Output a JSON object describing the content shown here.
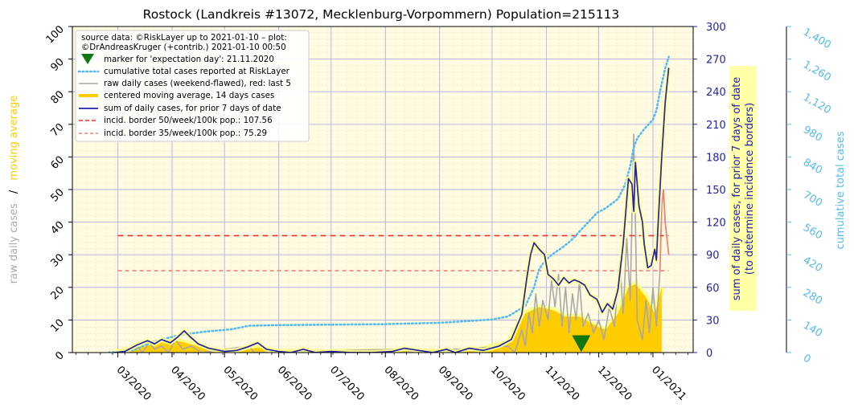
{
  "chart_data": {
    "type": "line",
    "title": "Rostock (Landkreis #13072, Mecklenburg-Vorpommern) Population=215113",
    "x_tick_labels": [
      "03/2020",
      "04/2020",
      "05/2020",
      "06/2020",
      "07/2020",
      "08/2020",
      "09/2020",
      "10/2020",
      "11/2020",
      "12/2020",
      "01/2021"
    ],
    "x_range": [
      "2020-02-04",
      "2021-01-24"
    ],
    "axes": {
      "left": {
        "label_part1": "raw daily cases",
        "label_sep": "/",
        "label_part2": "moving average",
        "range": [
          0,
          100
        ],
        "ticks": [
          "0",
          "10",
          "20",
          "30",
          "40",
          "50",
          "60",
          "70",
          "80",
          "90",
          "100"
        ]
      },
      "right1": {
        "label_line1": "sum of daily cases, for prior 7 days of date",
        "label_line2": "(to determine incidence borders)",
        "range": [
          0,
          300
        ],
        "ticks": [
          "0",
          "30",
          "60",
          "90",
          "120",
          "150",
          "180",
          "210",
          "240",
          "270",
          "300"
        ]
      },
      "right2": {
        "label": "cumulative total cases",
        "range": [
          0,
          1400
        ],
        "ticks": [
          "0",
          "140",
          "280",
          "420",
          "560",
          "700",
          "840",
          "980",
          "1,120",
          "1,260",
          "1,400"
        ]
      }
    },
    "legend": {
      "position": "top-left",
      "source_line1": "source data: ©RiskLayer up to 2021-01-10 – plot:",
      "source_line2": "©DrAndreasKruger (+contrib.) 2021-01-10 00:50",
      "entries": [
        "marker for 'expectation day': 21.11.2020",
        "cumulative total cases reported at RiskLayer",
        "raw daily cases (weekend-flawed), red: last 5",
        "centered moving average, 14 days cases",
        "sum of daily cases, for prior 7 days of date",
        "incid. border 50/week/100k pop.: 107.56",
        "incid. border 35/week/100k pop.: 75.29"
      ]
    },
    "expectation_day": {
      "date": "2020-11-21",
      "y_left": 2.5
    },
    "incidence_borders": [
      {
        "name": "50/week/100k",
        "value": 107.56,
        "from": "2020-03-01",
        "to": "2021-01-10",
        "color": "#ee3333"
      },
      {
        "name": "35/week/100k",
        "value": 75.29,
        "from": "2020-03-01",
        "to": "2021-01-10",
        "color": "#f08080"
      }
    ],
    "series": {
      "cumulative": {
        "axis": "right2",
        "points": [
          [
            "2020-02-25",
            0
          ],
          [
            "2020-03-10",
            10
          ],
          [
            "2020-03-20",
            45
          ],
          [
            "2020-04-05",
            75
          ],
          [
            "2020-04-20",
            90
          ],
          [
            "2020-05-05",
            100
          ],
          [
            "2020-05-15",
            115
          ],
          [
            "2020-06-01",
            118
          ],
          [
            "2020-07-01",
            120
          ],
          [
            "2020-08-01",
            122
          ],
          [
            "2020-09-01",
            128
          ],
          [
            "2020-09-15",
            134
          ],
          [
            "2020-10-01",
            142
          ],
          [
            "2020-10-10",
            155
          ],
          [
            "2020-10-20",
            200
          ],
          [
            "2020-10-25",
            280
          ],
          [
            "2020-10-28",
            360
          ],
          [
            "2020-11-01",
            400
          ],
          [
            "2020-11-05",
            425
          ],
          [
            "2020-11-10",
            450
          ],
          [
            "2020-11-15",
            480
          ],
          [
            "2020-11-20",
            520
          ],
          [
            "2020-11-25",
            560
          ],
          [
            "2020-11-30",
            600
          ],
          [
            "2020-12-05",
            620
          ],
          [
            "2020-12-12",
            660
          ],
          [
            "2020-12-16",
            720
          ],
          [
            "2020-12-19",
            800
          ],
          [
            "2020-12-21",
            880
          ],
          [
            "2020-12-23",
            920
          ],
          [
            "2020-12-27",
            960
          ],
          [
            "2021-01-01",
            1000
          ],
          [
            "2021-01-03",
            1040
          ],
          [
            "2021-01-05",
            1120
          ],
          [
            "2021-01-08",
            1220
          ],
          [
            "2021-01-10",
            1270
          ]
        ]
      },
      "weekly_sum": {
        "axis": "right1",
        "points": [
          [
            "2020-02-28",
            0
          ],
          [
            "2020-03-05",
            1
          ],
          [
            "2020-03-12",
            7
          ],
          [
            "2020-03-18",
            11
          ],
          [
            "2020-03-22",
            8
          ],
          [
            "2020-03-26",
            12
          ],
          [
            "2020-03-31",
            9
          ],
          [
            "2020-04-04",
            14
          ],
          [
            "2020-04-08",
            20
          ],
          [
            "2020-04-11",
            15
          ],
          [
            "2020-04-16",
            8
          ],
          [
            "2020-04-22",
            4
          ],
          [
            "2020-05-01",
            1
          ],
          [
            "2020-05-08",
            2
          ],
          [
            "2020-05-14",
            5
          ],
          [
            "2020-05-20",
            9
          ],
          [
            "2020-05-25",
            3
          ],
          [
            "2020-06-01",
            1
          ],
          [
            "2020-06-08",
            0
          ],
          [
            "2020-06-15",
            3
          ],
          [
            "2020-06-22",
            0
          ],
          [
            "2020-07-01",
            1
          ],
          [
            "2020-07-12",
            0
          ],
          [
            "2020-07-25",
            0
          ],
          [
            "2020-08-05",
            1
          ],
          [
            "2020-08-12",
            4
          ],
          [
            "2020-08-20",
            2
          ],
          [
            "2020-08-28",
            0
          ],
          [
            "2020-09-05",
            3
          ],
          [
            "2020-09-10",
            0
          ],
          [
            "2020-09-18",
            4
          ],
          [
            "2020-09-26",
            2
          ],
          [
            "2020-10-05",
            6
          ],
          [
            "2020-10-12",
            12
          ],
          [
            "2020-10-18",
            35
          ],
          [
            "2020-10-21",
            70
          ],
          [
            "2020-10-23",
            90
          ],
          [
            "2020-10-25",
            101
          ],
          [
            "2020-10-28",
            95
          ],
          [
            "2020-10-31",
            90
          ],
          [
            "2020-11-02",
            72
          ],
          [
            "2020-11-05",
            68
          ],
          [
            "2020-11-08",
            62
          ],
          [
            "2020-11-11",
            69
          ],
          [
            "2020-11-14",
            64
          ],
          [
            "2020-11-17",
            67
          ],
          [
            "2020-11-20",
            65
          ],
          [
            "2020-11-23",
            62
          ],
          [
            "2020-11-26",
            53
          ],
          [
            "2020-11-30",
            49
          ],
          [
            "2020-12-03",
            37
          ],
          [
            "2020-12-06",
            45
          ],
          [
            "2020-12-09",
            40
          ],
          [
            "2020-12-12",
            58
          ],
          [
            "2020-12-15",
            100
          ],
          [
            "2020-12-18",
            160
          ],
          [
            "2020-12-20",
            155
          ],
          [
            "2020-12-21",
            130
          ],
          [
            "2020-12-22",
            175
          ],
          [
            "2020-12-24",
            135
          ],
          [
            "2020-12-26",
            120
          ],
          [
            "2020-12-27",
            100
          ],
          [
            "2020-12-29",
            78
          ],
          [
            "2020-12-31",
            80
          ],
          [
            "2021-01-02",
            95
          ],
          [
            "2021-01-03",
            85
          ],
          [
            "2021-01-04",
            120
          ],
          [
            "2021-01-06",
            180
          ],
          [
            "2021-01-08",
            230
          ],
          [
            "2021-01-10",
            262
          ]
        ]
      },
      "moving_average": {
        "axis": "left",
        "points": [
          [
            "2020-02-28",
            0
          ],
          [
            "2020-03-12",
            1.5
          ],
          [
            "2020-03-25",
            3
          ],
          [
            "2020-04-05",
            3.5
          ],
          [
            "2020-04-12",
            2.5
          ],
          [
            "2020-04-25",
            0.5
          ],
          [
            "2020-05-10",
            0.5
          ],
          [
            "2020-05-20",
            1.5
          ],
          [
            "2020-06-01",
            0.3
          ],
          [
            "2020-07-01",
            0.2
          ],
          [
            "2020-08-12",
            0.5
          ],
          [
            "2020-09-01",
            0.3
          ],
          [
            "2020-09-20",
            0.5
          ],
          [
            "2020-10-10",
            3
          ],
          [
            "2020-10-20",
            12
          ],
          [
            "2020-10-28",
            14
          ],
          [
            "2020-11-05",
            13
          ],
          [
            "2020-11-12",
            11
          ],
          [
            "2020-11-20",
            11
          ],
          [
            "2020-11-30",
            8
          ],
          [
            "2020-12-05",
            7
          ],
          [
            "2020-12-12",
            12
          ],
          [
            "2020-12-18",
            20
          ],
          [
            "2020-12-22",
            21
          ],
          [
            "2020-12-28",
            17
          ],
          [
            "2021-01-02",
            12
          ],
          [
            "2021-01-06",
            20
          ]
        ]
      },
      "raw_daily": {
        "axis": "left",
        "points": [
          [
            "2020-03-01",
            0
          ],
          [
            "2020-03-12",
            2
          ],
          [
            "2020-03-15",
            0
          ],
          [
            "2020-03-19",
            3
          ],
          [
            "2020-03-22",
            1
          ],
          [
            "2020-03-26",
            2
          ],
          [
            "2020-03-30",
            0
          ],
          [
            "2020-04-03",
            4
          ],
          [
            "2020-04-07",
            1
          ],
          [
            "2020-04-12",
            2
          ],
          [
            "2020-04-18",
            0
          ],
          [
            "2020-05-15",
            2
          ],
          [
            "2020-05-18",
            0
          ],
          [
            "2020-08-08",
            1
          ],
          [
            "2020-08-10",
            0
          ],
          [
            "2020-10-10",
            2
          ],
          [
            "2020-10-14",
            0
          ],
          [
            "2020-10-18",
            7
          ],
          [
            "2020-10-20",
            2
          ],
          [
            "2020-10-22",
            12
          ],
          [
            "2020-10-24",
            6
          ],
          [
            "2020-10-26",
            18
          ],
          [
            "2020-10-28",
            8
          ],
          [
            "2020-10-30",
            16
          ],
          [
            "2020-11-02",
            10
          ],
          [
            "2020-11-04",
            22
          ],
          [
            "2020-11-06",
            14
          ],
          [
            "2020-11-08",
            24
          ],
          [
            "2020-11-10",
            8
          ],
          [
            "2020-11-12",
            20
          ],
          [
            "2020-11-14",
            6
          ],
          [
            "2020-11-16",
            18
          ],
          [
            "2020-11-18",
            10
          ],
          [
            "2020-11-20",
            22
          ],
          [
            "2020-11-22",
            8
          ],
          [
            "2020-11-25",
            12
          ],
          [
            "2020-11-28",
            6
          ],
          [
            "2020-12-01",
            10
          ],
          [
            "2020-12-04",
            4
          ],
          [
            "2020-12-07",
            14
          ],
          [
            "2020-12-10",
            8
          ],
          [
            "2020-12-13",
            28
          ],
          [
            "2020-12-15",
            12
          ],
          [
            "2020-12-17",
            35
          ],
          [
            "2020-12-19",
            16
          ],
          [
            "2020-12-21",
            67
          ],
          [
            "2020-12-23",
            10
          ],
          [
            "2020-12-26",
            4
          ],
          [
            "2020-12-28",
            16
          ],
          [
            "2020-12-30",
            6
          ],
          [
            "2021-01-01",
            20
          ],
          [
            "2021-01-03",
            8
          ],
          [
            "2021-01-05",
            25
          ]
        ],
        "last5": [
          [
            "2021-01-06",
            45
          ],
          [
            "2021-01-07",
            50
          ],
          [
            "2021-01-08",
            40
          ],
          [
            "2021-01-09",
            35
          ],
          [
            "2021-01-10",
            30
          ]
        ]
      }
    }
  }
}
